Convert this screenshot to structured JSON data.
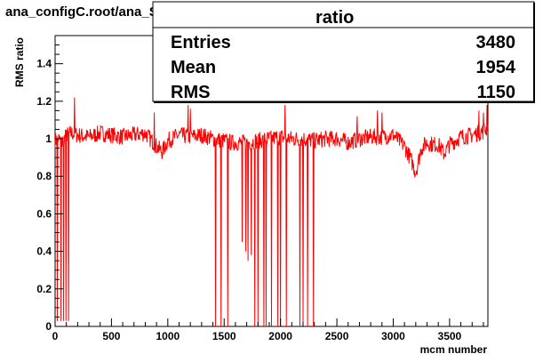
{
  "title": "ana_configC.root/ana_SM_alone.root",
  "stats": {
    "name": "ratio",
    "rows": [
      {
        "label": "Entries",
        "value": "3480"
      },
      {
        "label": "Mean",
        "value": "1954"
      },
      {
        "label": "RMS",
        "value": "1150"
      }
    ]
  },
  "colors": {
    "series": "#ff0000",
    "axis": "#000000",
    "background": "#ffffff"
  },
  "chart_data": {
    "type": "line",
    "title": "ana_configC.root/ana_SM_alone.root",
    "xlabel": "mcm number",
    "ylabel": "RMS ratio",
    "xlim": [
      0,
      3840
    ],
    "ylim": [
      0,
      1.55
    ],
    "xticks": [
      0,
      500,
      1000,
      1500,
      2000,
      2500,
      3000,
      3500
    ],
    "xtick_labels": [
      "0",
      "500",
      "1000",
      "1500",
      "2000",
      "2500",
      "3000",
      "3500"
    ],
    "yticks": [
      0,
      0.2,
      0.4,
      0.6,
      0.8,
      1,
      1.2,
      1.4
    ],
    "ytick_labels": [
      "0",
      "0.2",
      "0.4",
      "0.6",
      "0.8",
      "1",
      "1.2",
      "1.4"
    ],
    "grid": false,
    "series": [
      {
        "baseline": [
          [
            0,
            0.99
          ],
          [
            30,
            1.0
          ],
          [
            60,
            0.98
          ],
          [
            100,
            1.02
          ],
          [
            150,
            1.03
          ],
          [
            200,
            1.02
          ],
          [
            300,
            1.01
          ],
          [
            400,
            1.03
          ],
          [
            500,
            1.02
          ],
          [
            600,
            1.01
          ],
          [
            700,
            1.02
          ],
          [
            800,
            1.03
          ],
          [
            900,
            0.96
          ],
          [
            950,
            0.93
          ],
          [
            1000,
            0.99
          ],
          [
            1100,
            1.02
          ],
          [
            1200,
            1.01
          ],
          [
            1300,
            1.02
          ],
          [
            1400,
            1.0
          ],
          [
            1500,
            0.99
          ],
          [
            1560,
            0.98
          ],
          [
            1700,
            0.98
          ],
          [
            1800,
            0.99
          ],
          [
            1900,
            1.0
          ],
          [
            2000,
            1.01
          ],
          [
            2100,
            1.0
          ],
          [
            2200,
            1.0
          ],
          [
            2300,
            0.99
          ],
          [
            2400,
            1.0
          ],
          [
            2500,
            1.0
          ],
          [
            2600,
            0.98
          ],
          [
            2700,
            1.0
          ],
          [
            2800,
            1.01
          ],
          [
            2900,
            1.01
          ],
          [
            3000,
            1.02
          ],
          [
            3050,
            0.99
          ],
          [
            3100,
            0.96
          ],
          [
            3150,
            0.9
          ],
          [
            3200,
            0.82
          ],
          [
            3250,
            0.95
          ],
          [
            3300,
            0.98
          ],
          [
            3350,
            0.97
          ],
          [
            3400,
            0.97
          ],
          [
            3450,
            0.92
          ],
          [
            3500,
            0.97
          ],
          [
            3600,
            1.01
          ],
          [
            3700,
            1.02
          ],
          [
            3800,
            1.04
          ],
          [
            3840,
            1.06
          ]
        ],
        "dips": [
          [
            20,
            0.03
          ],
          [
            50,
            0.03
          ],
          [
            75,
            0.03
          ],
          [
            95,
            0.03
          ],
          [
            120,
            0.03
          ],
          [
            1425,
            0
          ],
          [
            1470,
            0
          ],
          [
            1530,
            0
          ],
          [
            1660,
            0.45
          ],
          [
            1690,
            0.4
          ],
          [
            1710,
            0.35
          ],
          [
            1740,
            0.38
          ],
          [
            1770,
            0
          ],
          [
            1800,
            0.0
          ],
          [
            1850,
            0
          ],
          [
            1870,
            0
          ],
          [
            1920,
            0
          ],
          [
            1975,
            0
          ],
          [
            2000,
            0
          ],
          [
            2050,
            0
          ],
          [
            2170,
            0
          ],
          [
            2200,
            0
          ],
          [
            2240,
            0
          ],
          [
            2290,
            0
          ]
        ],
        "spikes": [
          [
            170,
            1.22
          ],
          [
            880,
            1.14
          ],
          [
            1180,
            1.18
          ],
          [
            1200,
            1.16
          ],
          [
            1800,
            1.2
          ],
          [
            2040,
            1.18
          ],
          [
            2680,
            1.12
          ],
          [
            2860,
            1.15
          ],
          [
            2900,
            1.14
          ],
          [
            3760,
            1.15
          ],
          [
            3800,
            1.14
          ],
          [
            3830,
            1.18
          ]
        ]
      }
    ]
  }
}
